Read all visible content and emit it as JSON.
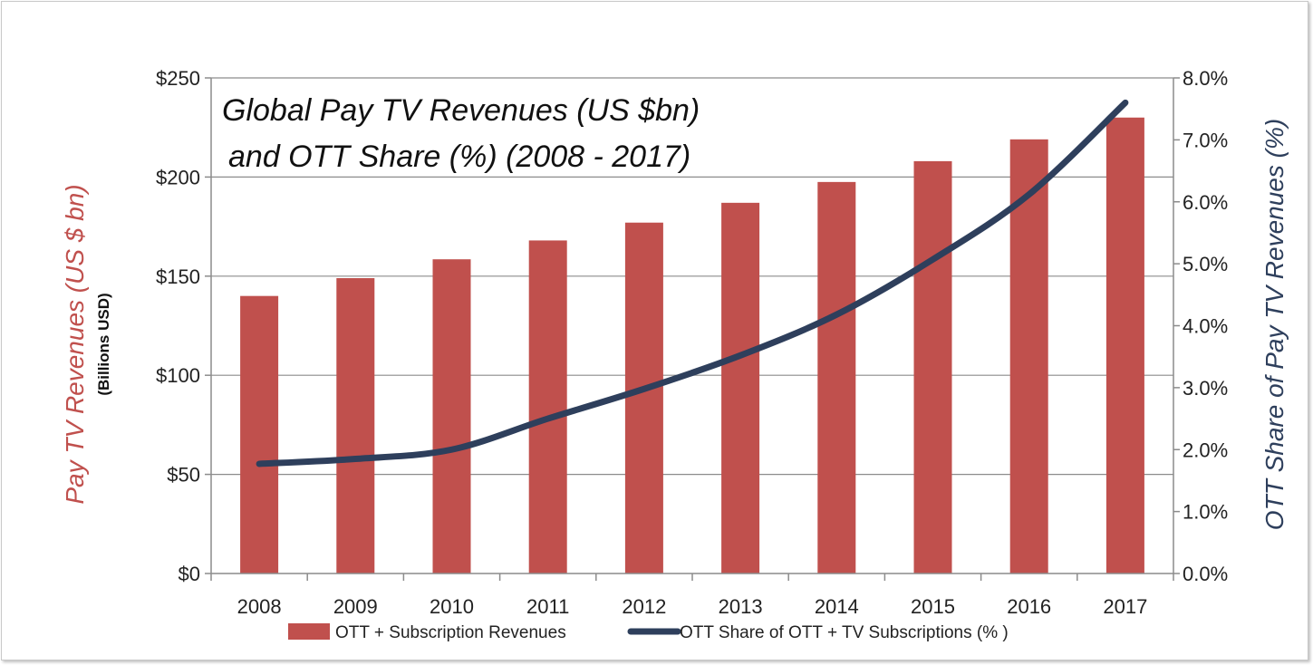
{
  "chart_data": {
    "type": "bar",
    "title_line1": "Global Pay TV Revenues (US $bn)",
    "title_line2": "and OTT Share (%) (2008 - 2017)",
    "categories": [
      "2008",
      "2009",
      "2010",
      "2011",
      "2012",
      "2013",
      "2014",
      "2015",
      "2016",
      "2017"
    ],
    "series": [
      {
        "name": "OTT + Subscription Revenues",
        "type": "bar",
        "axis": "left",
        "color": "#c0504d",
        "values": [
          140,
          149,
          158.5,
          168,
          177,
          187,
          197.5,
          208,
          219,
          230
        ]
      },
      {
        "name": "OTT Share of OTT + TV Subscriptions (% )",
        "type": "line",
        "axis": "right",
        "color": "#2e3f5c",
        "values": [
          1.77,
          1.85,
          2.0,
          2.5,
          2.98,
          3.52,
          4.18,
          5.07,
          6.12,
          7.6
        ]
      }
    ],
    "ylabel_left": "Pay TV Revenues (US $ bn)",
    "ylabel_left_sub": "(Billions USD)",
    "ylabel_right": "OTT Share of Pay TV Revenues (%)",
    "ylim_left": [
      0,
      250
    ],
    "ylim_right": [
      0,
      8
    ],
    "yticks_left": [
      "$0",
      "$50",
      "$100",
      "$150",
      "$200",
      "$250"
    ],
    "yticks_right": [
      "0.0%",
      "1.0%",
      "2.0%",
      "3.0%",
      "4.0%",
      "5.0%",
      "6.0%",
      "7.0%",
      "8.0%"
    ],
    "grid": true,
    "legend_position": "bottom"
  }
}
